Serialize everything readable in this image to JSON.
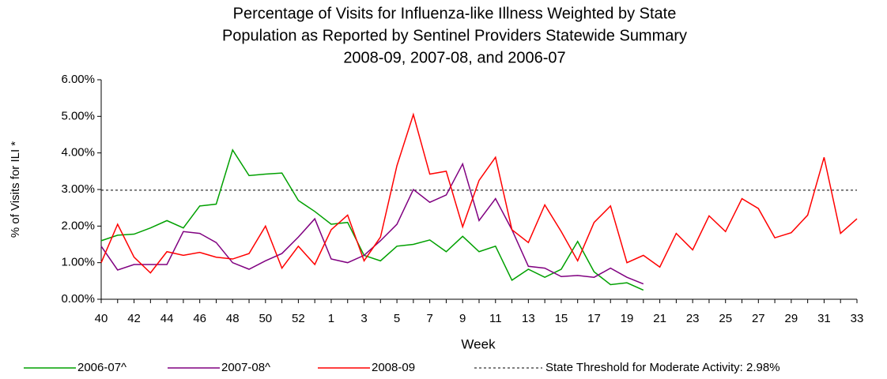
{
  "chart_data": {
    "type": "line",
    "title": [
      "Percentage of Visits for Influenza-like Illness Weighted by State",
      "Population as Reported by Sentinel Providers Statewide Summary",
      "2008-09, 2007-08, and 2006-07"
    ],
    "xlabel": "Week",
    "ylabel": "% of Visits for ILI *",
    "categories": [
      "40",
      null,
      "42",
      null,
      "44",
      null,
      "46",
      null,
      "48",
      null,
      "50",
      null,
      "52",
      null,
      "1",
      null,
      "3",
      null,
      "5",
      null,
      "7",
      null,
      "9",
      null,
      "11",
      null,
      "13",
      null,
      "15",
      null,
      "17",
      null,
      "19",
      null,
      "21",
      null,
      "23",
      null,
      "25",
      null,
      "27",
      null,
      "29",
      null,
      "31",
      null,
      "33"
    ],
    "series": [
      {
        "name": "2006-07^",
        "color": "#00a000",
        "values": [
          1.6,
          1.75,
          1.78,
          1.95,
          2.15,
          1.95,
          2.55,
          2.6,
          4.08,
          3.38,
          3.42,
          3.45,
          2.7,
          2.4,
          2.05,
          2.1,
          1.2,
          1.05,
          1.45,
          1.5,
          1.62,
          1.3,
          1.72,
          1.3,
          1.45,
          0.52,
          0.82,
          0.6,
          0.82,
          1.58,
          0.75,
          0.4,
          0.45,
          0.25,
          null,
          null,
          null,
          null,
          null,
          null,
          null,
          null,
          null,
          null,
          null,
          null,
          null
        ]
      },
      {
        "name": "2007-08^",
        "color": "#800080",
        "values": [
          1.45,
          0.8,
          0.95,
          0.95,
          0.95,
          1.85,
          1.8,
          1.55,
          1.0,
          0.82,
          1.05,
          1.25,
          1.7,
          2.2,
          1.1,
          1.0,
          1.2,
          1.6,
          2.05,
          3.0,
          2.65,
          2.85,
          3.7,
          2.15,
          2.75,
          1.9,
          0.9,
          0.85,
          0.62,
          0.65,
          0.6,
          0.85,
          0.6,
          0.42,
          null,
          null,
          null,
          null,
          null,
          null,
          null,
          null,
          null,
          null,
          null,
          null,
          null
        ]
      },
      {
        "name": "2008-09",
        "color": "#ff0000",
        "values": [
          1.0,
          2.05,
          1.15,
          0.72,
          1.3,
          1.2,
          1.28,
          1.15,
          1.1,
          1.25,
          2.0,
          0.85,
          1.45,
          0.95,
          1.9,
          2.3,
          1.05,
          1.7,
          3.65,
          5.05,
          3.42,
          3.5,
          1.98,
          3.25,
          3.88,
          1.9,
          1.55,
          2.58,
          1.85,
          1.05,
          2.1,
          2.55,
          1.0,
          1.2,
          0.88,
          1.8,
          1.35,
          2.28,
          1.85,
          2.75,
          2.48,
          1.68,
          1.82,
          2.3,
          3.88,
          1.8,
          2.2
        ]
      }
    ],
    "threshold": {
      "name": "State Threshold for Moderate Activity: 2.98%",
      "value": 2.98,
      "color": "#000000"
    },
    "ylim": [
      0,
      6
    ],
    "yticks": [
      {
        "value": 0,
        "label": "0.00%"
      },
      {
        "value": 1,
        "label": "1.00%"
      },
      {
        "value": 2,
        "label": "2.00%"
      },
      {
        "value": 3,
        "label": "3.00%"
      },
      {
        "value": 4,
        "label": "4.00%"
      },
      {
        "value": 5,
        "label": "5.00%"
      },
      {
        "value": 6,
        "label": "6.00%"
      }
    ],
    "legend": "bottom"
  }
}
